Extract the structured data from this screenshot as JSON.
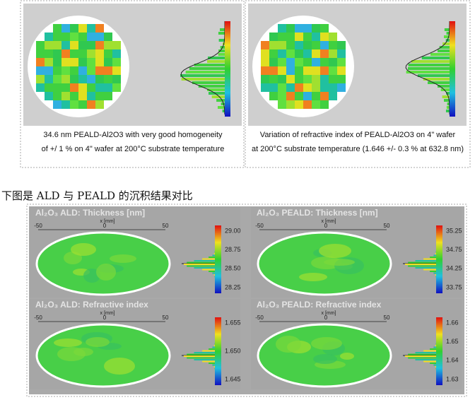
{
  "top_panels": [
    {
      "caption": [
        "34.6 nm PEALD-Al2O3 with very good homogeneity",
        "of +/  1 % on 4\" wafer at 200°C substrate temperature"
      ]
    },
    {
      "caption": [
        "Variation of refractive index of PEALD-Al2O3 on 4\" wafer",
        "at 200°C substrate temperature (1.646 +/- 0.3 % at 632.8 nm)"
      ]
    }
  ],
  "section_heading": "下图是 ALD 与 PEALD 的沉积结果对比",
  "bottom_panels": [
    {
      "title": "Al₂O₃ ALD: Thickness [nm]",
      "x_label": "x [mm]",
      "x_ticks": [
        "-50",
        "0",
        "50"
      ],
      "scale": [
        "29.00",
        "28.75",
        "28.50",
        "28.25"
      ]
    },
    {
      "title": "Al₂O₃ PEALD: Thickness [nm]",
      "x_label": "x [mm]",
      "x_ticks": [
        "-50",
        "0",
        "50"
      ],
      "scale": [
        "35.25",
        "34.75",
        "34.25",
        "33.75"
      ]
    },
    {
      "title": "Al₂O₃ ALD: Refractive index",
      "x_label": "x [mm]",
      "x_ticks": [
        "-50",
        "0",
        "50"
      ],
      "scale": [
        "1.655",
        "1.650",
        "1.645"
      ]
    },
    {
      "title": "Al₂O₃ PEALD: Refractive index",
      "x_label": "x [mm]",
      "x_ticks": [
        "-50",
        "0",
        "50"
      ],
      "scale": [
        "1.66",
        "1.65",
        "1.64",
        "1.63"
      ]
    }
  ]
}
